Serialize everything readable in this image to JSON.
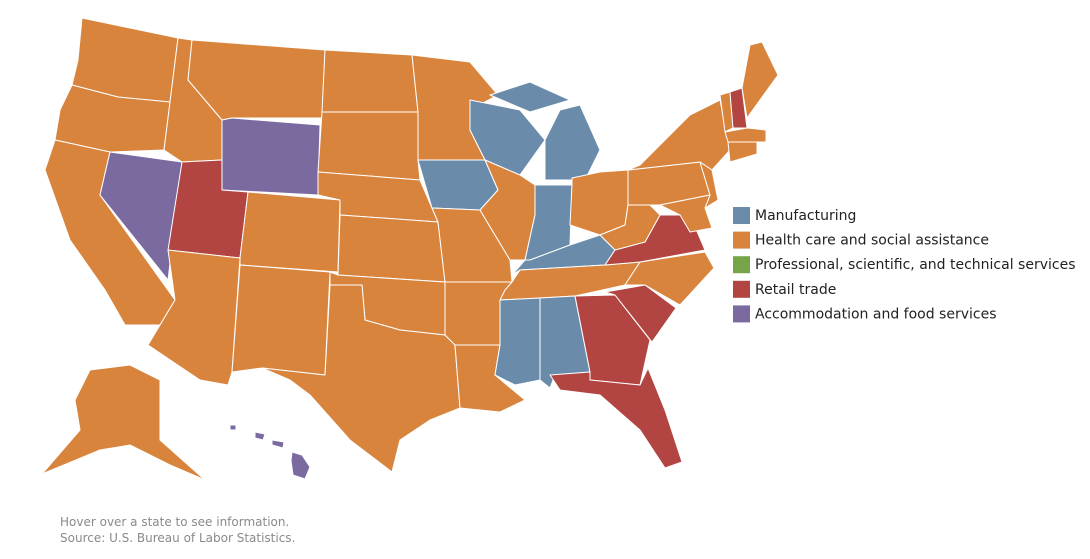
{
  "map": {
    "legend": [
      {
        "label": "Manufacturing",
        "color": "#6a8caa"
      },
      {
        "label": "Health care and social assistance",
        "color": "#d9843d"
      },
      {
        "label": "Professional, scientific, and technical services",
        "color": "#76a449"
      },
      {
        "label": "Retail trade",
        "color": "#b24442"
      },
      {
        "label": "Accommodation and food services",
        "color": "#7b6aa0"
      }
    ],
    "states": [
      1,
      1,
      1,
      4,
      1,
      1,
      4,
      3,
      1,
      1,
      1,
      1,
      1,
      1,
      1,
      1,
      1,
      1,
      0,
      1,
      1,
      1,
      0,
      1,
      0,
      0,
      1,
      0,
      1,
      0,
      0,
      3,
      3,
      3,
      1,
      3,
      1,
      1,
      1,
      1,
      1,
      1,
      3,
      1,
      1,
      1,
      1,
      4
    ],
    "footnotes": [
      "Hover over a state to see information.",
      "Source: U.S. Bureau of Labor Statistics."
    ]
  }
}
